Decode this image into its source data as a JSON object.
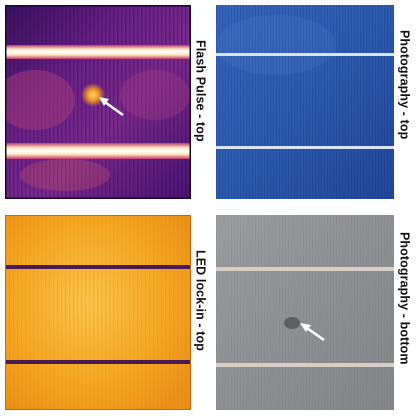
{
  "panels": [
    {
      "id": "flash-pulse-top",
      "label": "Flash Pulse - top",
      "imaging": "thermal-flash-pulse"
    },
    {
      "id": "photography-top",
      "label": "Photography - top",
      "imaging": "visible-photo"
    },
    {
      "id": "led-lock-in-top",
      "label": "LED lock-in - top",
      "imaging": "thermal-lock-in"
    },
    {
      "id": "photography-bottom",
      "label": "Photography - bottom",
      "imaging": "visible-photo"
    }
  ],
  "colors": {
    "thermal_dark": "#2a0f55",
    "thermal_mid": "#8a2a8f",
    "thermal_hot": "#f39b1e",
    "thermal_white": "#fff7e8",
    "cell_blue": "#2e5fb6",
    "cell_blue_dark": "#1f428f",
    "lockin_orange": "#f2a21f",
    "lockin_bright": "#fbc24a",
    "lockin_busbar": "#4a1a52",
    "cell_gray": "#8d8f92",
    "cell_gray_light": "#a3a5a8",
    "busbar_light": "#d7cfc4",
    "arrow": "#ffffff",
    "label_text": "#111111"
  }
}
